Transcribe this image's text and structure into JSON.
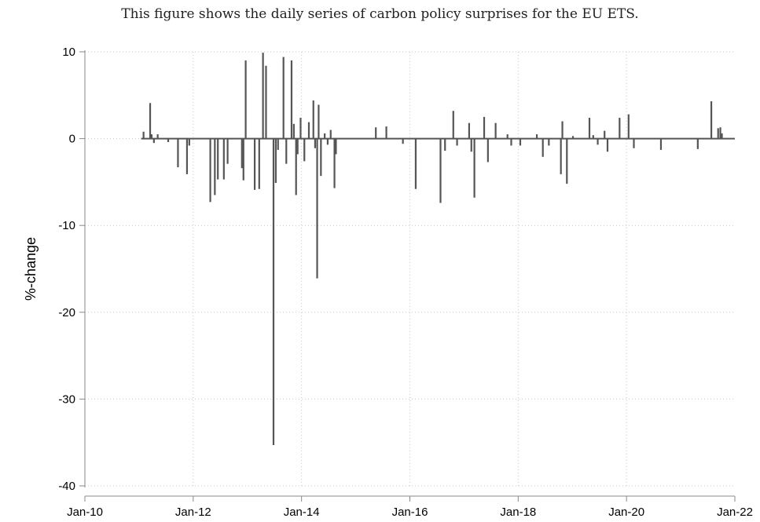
{
  "caption": "This figure shows the daily series of carbon policy surprises for the EU ETS.",
  "chart_data": {
    "type": "bar",
    "title": "",
    "xlabel": "",
    "ylabel": "%-change",
    "xlim": [
      "2010-01",
      "2022-01"
    ],
    "ylim": [
      -40,
      10
    ],
    "x_ticks": [
      "Jan-10",
      "Jan-12",
      "Jan-14",
      "Jan-16",
      "Jan-18",
      "Jan-20",
      "Jan-22"
    ],
    "y_ticks": [
      "10",
      "0",
      "-10",
      "-20",
      "-30",
      "-40"
    ],
    "grid": true,
    "bar_color": "#555555",
    "gridline_color": "#c8c8c8",
    "series": [
      {
        "x": [
          "2011-02-01",
          "2011-03-15",
          "2011-03-25",
          "2011-04-10",
          "2011-05-05",
          "2011-07-15",
          "2011-09-20",
          "2011-11-20",
          "2011-12-05",
          "2012-04-25",
          "2012-05-25",
          "2012-06-15",
          "2012-07-25",
          "2012-08-20",
          "2012-11-25",
          "2012-12-05",
          "2012-12-20",
          "2013-02-20",
          "2013-03-20",
          "2013-04-15",
          "2013-05-05",
          "2013-06-25",
          "2013-07-10",
          "2013-07-25",
          "2013-09-01",
          "2013-09-20",
          "2013-10-25",
          "2013-11-10",
          "2013-11-25",
          "2013-12-05",
          "2013-12-25",
          "2014-01-20",
          "2014-02-20",
          "2014-03-20",
          "2014-04-01",
          "2014-04-15",
          "2014-04-25",
          "2014-05-10",
          "2014-06-05",
          "2014-06-25",
          "2014-07-15",
          "2014-08-10",
          "2014-08-20",
          "2015-05-15",
          "2015-07-25",
          "2015-11-15",
          "2016-02-10",
          "2016-07-25",
          "2016-08-25",
          "2016-10-20",
          "2016-11-15",
          "2017-02-05",
          "2017-02-20",
          "2017-03-10",
          "2017-05-15",
          "2017-06-10",
          "2017-08-01",
          "2017-10-20",
          "2017-11-15",
          "2018-01-15",
          "2018-05-05",
          "2018-06-15",
          "2018-07-25",
          "2018-10-15",
          "2018-10-25",
          "2018-11-25",
          "2019-01-05",
          "2019-04-25",
          "2019-05-20",
          "2019-06-20",
          "2019-08-05",
          "2019-08-25",
          "2019-11-15",
          "2020-01-15",
          "2020-02-20",
          "2020-08-20",
          "2021-04-25",
          "2021-07-25",
          "2021-09-10",
          "2021-09-25",
          "2021-10-05"
        ],
        "values": [
          0.8,
          4.1,
          0.5,
          -0.5,
          0.5,
          -0.4,
          -3.3,
          -4.1,
          -0.8,
          -7.3,
          -6.5,
          -4.7,
          -4.7,
          -2.9,
          -3.4,
          -4.8,
          9.0,
          -5.9,
          -5.8,
          9.9,
          8.4,
          -35.3,
          -5.1,
          -1.3,
          9.4,
          -2.9,
          9.0,
          1.7,
          -6.5,
          -1.8,
          2.4,
          -2.6,
          1.9,
          4.4,
          -1.1,
          -16.1,
          3.9,
          -4.3,
          0.6,
          -0.7,
          1.0,
          -5.7,
          -1.8,
          1.3,
          1.4,
          -0.6,
          -5.8,
          -7.4,
          -1.4,
          3.2,
          -0.8,
          1.8,
          -1.5,
          -6.8,
          2.5,
          -2.7,
          1.8,
          0.5,
          -0.8,
          -0.8,
          0.5,
          -2.1,
          -0.8,
          -4.1,
          2.0,
          -5.2,
          0.3,
          2.4,
          0.4,
          -0.7,
          0.9,
          -1.5,
          2.4,
          2.8,
          -1.1,
          -1.3,
          -1.2,
          4.3,
          1.2,
          1.3,
          0.6
        ]
      }
    ]
  }
}
